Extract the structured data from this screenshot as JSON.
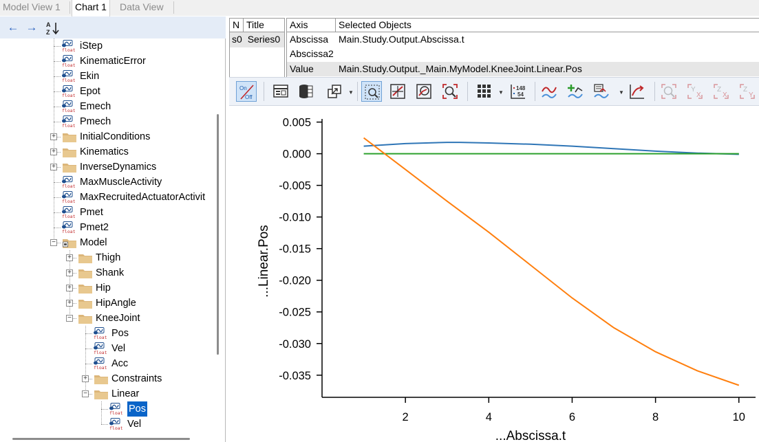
{
  "tabs": [
    {
      "label": "Model View 1",
      "active": false
    },
    {
      "label": "Chart 1",
      "active": true
    },
    {
      "label": "Data View",
      "active": false
    }
  ],
  "left_toolbar": {
    "back_icon": "arrow-left-icon",
    "forward_icon": "arrow-right-icon",
    "sort_icon": "sort-az-icon"
  },
  "tree": {
    "items": [
      {
        "label": "iStep",
        "type": "float"
      },
      {
        "label": "KinematicError",
        "type": "float"
      },
      {
        "label": "Ekin",
        "type": "float"
      },
      {
        "label": "Epot",
        "type": "float"
      },
      {
        "label": "Emech",
        "type": "float"
      },
      {
        "label": "Pmech",
        "type": "float"
      },
      {
        "label": "InitialConditions",
        "type": "folder"
      },
      {
        "label": "Kinematics",
        "type": "folder"
      },
      {
        "label": "InverseDynamics",
        "type": "folder"
      },
      {
        "label": "MaxMuscleActivity",
        "type": "float"
      },
      {
        "label": "MaxRecruitedActuatorActivit",
        "type": "float"
      },
      {
        "label": "Pmet",
        "type": "float"
      },
      {
        "label": "Pmet2",
        "type": "float"
      },
      {
        "label": "Model",
        "type": "folder"
      },
      {
        "label": "Thigh",
        "type": "folder"
      },
      {
        "label": "Shank",
        "type": "folder"
      },
      {
        "label": "Hip",
        "type": "folder"
      },
      {
        "label": "HipAngle",
        "type": "folder"
      },
      {
        "label": "KneeJoint",
        "type": "folder"
      },
      {
        "label": "Pos",
        "type": "float"
      },
      {
        "label": "Vel",
        "type": "float"
      },
      {
        "label": "Acc",
        "type": "float"
      },
      {
        "label": "Constraints",
        "type": "folder"
      },
      {
        "label": "Linear",
        "type": "folder"
      },
      {
        "label": "Pos",
        "type": "float",
        "selected": true
      },
      {
        "label": "Vel",
        "type": "float"
      }
    ],
    "float_badge": "float"
  },
  "series_table": {
    "headers": {
      "n": "N",
      "title": "Title",
      "axis": "Axis",
      "selected": "Selected Objects"
    },
    "series": [
      {
        "n": "s0",
        "title": "Series0"
      }
    ],
    "axes": [
      {
        "axis": "Abscissa",
        "selected": "Main.Study.Output.Abscissa.t"
      },
      {
        "axis": "Abscissa2",
        "selected": ""
      },
      {
        "axis": "Value",
        "selected": "Main.Study.Output._Main.MyModel.KneeJoint.Linear.Pos"
      }
    ]
  },
  "chart_toolbar": {
    "onoff_on": "On",
    "onoff_off": "Off",
    "counter_top": "148",
    "counter_bottom": "54",
    "buttons": [
      "on-off-toggle",
      "table-view",
      "database",
      "export",
      "zoom-box",
      "pan",
      "zoom-fit",
      "zoom-select",
      "grid",
      "data-labels",
      "series-style",
      "add-series",
      "series-props",
      "export-plot",
      "zoom-disabled",
      "zoom-y-disabled",
      "zoom-z-disabled",
      "zoom-zy-disabled"
    ]
  },
  "chart_data": {
    "type": "line",
    "xlabel": "...Abscissa.t",
    "ylabel": "...Linear.Pos",
    "xlim": [
      0.0,
      10.4
    ],
    "ylim": [
      -0.0385,
      0.0055
    ],
    "xticks": [
      2,
      4,
      6,
      8,
      10
    ],
    "yticks": [
      0.005,
      0.0,
      -0.005,
      -0.01,
      -0.015,
      -0.02,
      -0.025,
      -0.03,
      -0.035
    ],
    "ytick_labels": [
      "0.005",
      "0.000",
      "-0.005",
      "-0.010",
      "-0.015",
      "-0.020",
      "-0.025",
      "-0.030",
      "-0.035"
    ],
    "grid": false,
    "series": [
      {
        "color": "#2e75b6",
        "x": [
          1.0,
          2.0,
          3.0,
          3.3,
          4.0,
          5.0,
          6.0,
          7.0,
          8.0,
          9.0,
          10.0
        ],
        "values": [
          0.0012,
          0.0016,
          0.0018,
          0.0018,
          0.0017,
          0.0015,
          0.0012,
          0.0008,
          0.0004,
          0.0001,
          -0.0001
        ]
      },
      {
        "color": "#2ca02c",
        "x": [
          1.0,
          10.0
        ],
        "values": [
          0.0,
          0.0
        ]
      },
      {
        "color": "#ff7f0e",
        "x": [
          1.0,
          1.5,
          2.0,
          3.0,
          4.0,
          5.0,
          6.0,
          7.0,
          8.0,
          9.0,
          10.0
        ],
        "values": [
          0.0025,
          0.0,
          -0.0025,
          -0.0075,
          -0.0124,
          -0.0176,
          -0.0228,
          -0.0275,
          -0.0313,
          -0.0343,
          -0.0366
        ]
      }
    ]
  }
}
